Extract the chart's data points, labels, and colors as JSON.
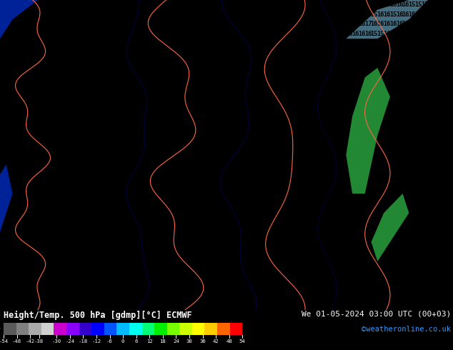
{
  "title_left": "Height/Temp. 500 hPa [gdmp][°C] ECMWF",
  "title_right": "We 01-05-2024 03:00 UTC (00+03)",
  "credit": "©weatheronline.co.uk",
  "colorbar_tick_labels": [
    "-54",
    "-48",
    "-42",
    "-38",
    "-30",
    "-24",
    "-18",
    "-12",
    "-6",
    "0",
    "6",
    "12",
    "18",
    "24",
    "30",
    "36",
    "42",
    "48",
    "54"
  ],
  "colorbar_values": [
    -54,
    -48,
    -42,
    -38,
    -30,
    -24,
    -18,
    -12,
    -6,
    0,
    6,
    12,
    18,
    24,
    30,
    36,
    42,
    48,
    54
  ],
  "map_bg": "#00d0f0",
  "bottom_bg": "#000000",
  "colorbar_colors": [
    "#5a5a5a",
    "#808080",
    "#aaaaaa",
    "#d0d0d0",
    "#cc00cc",
    "#8800ff",
    "#3300cc",
    "#0000ff",
    "#0055ff",
    "#00bbff",
    "#00ffee",
    "#00ff77",
    "#00ee00",
    "#77ff00",
    "#ccff00",
    "#ffff00",
    "#ffcc00",
    "#ff6600",
    "#ff0000"
  ],
  "figsize": [
    6.34,
    4.9
  ],
  "dpi": 100,
  "map_text_color": "#000000",
  "orange_line_color": "#ff6644",
  "black_line_color": "#000033",
  "land_color_dark": "#002299",
  "land_color_green": "#228833",
  "light_blue_patch": "#88ddff",
  "map_font_size": 6.2,
  "num_rows": 32,
  "num_cols": 72
}
